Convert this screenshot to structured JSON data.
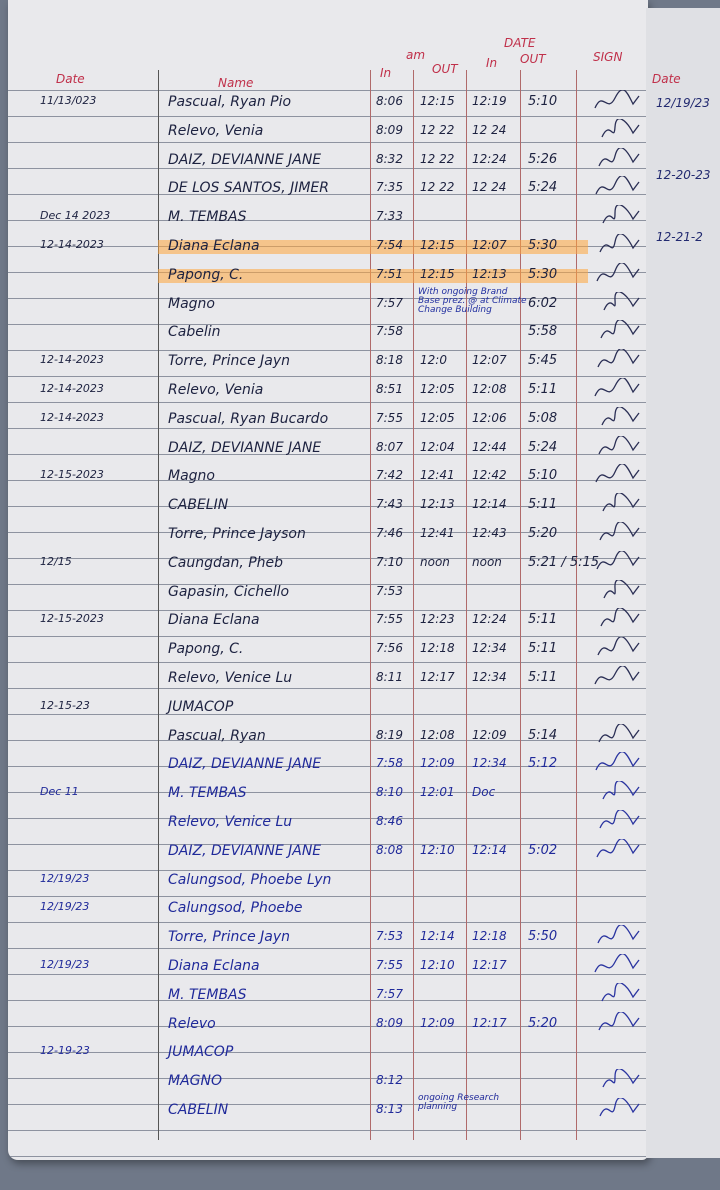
{
  "header": {
    "date": "Date",
    "name": "Name",
    "am": "am",
    "date_col": "DATE",
    "in_am": "In",
    "out_am": "OUT",
    "in_pm": "In",
    "out_pm": "OUT",
    "sign": "SIGN"
  },
  "right_page": {
    "header": "Date",
    "dates": [
      "12/19/23",
      "12-20-23",
      "12-21-2"
    ]
  },
  "highlight_color": "#ffa53c",
  "rows": [
    {
      "date": "11/13/023",
      "name": "Pascual, Ryan Pio",
      "am_in": "8:06",
      "am_out": "12:15",
      "pm_in": "12:19",
      "pm_out": "5:10"
    },
    {
      "date": "",
      "name": "Relevo, Venia",
      "am_in": "8:09",
      "am_out": "12 22",
      "pm_in": "12 24",
      "pm_out": ""
    },
    {
      "date": "",
      "name": "DAIZ, DEVIANNE JANE",
      "am_in": "8:32",
      "am_out": "12 22",
      "pm_in": "12:24",
      "pm_out": "5:26"
    },
    {
      "date": "",
      "name": "DE LOS SANTOS, JIMER",
      "am_in": "7:35",
      "am_out": "12 22",
      "pm_in": "12 24",
      "pm_out": "5:24"
    },
    {
      "date": "Dec 14 2023",
      "name": "M. TEMBAS",
      "am_in": "7:33",
      "am_out": "",
      "pm_in": "",
      "pm_out": ""
    },
    {
      "date": "12-14-2023",
      "name": "Diana Eclana",
      "am_in": "7:54",
      "am_out": "12:15",
      "pm_in": "12:07",
      "pm_out": "5:30",
      "highlight": true
    },
    {
      "date": "",
      "name": "Papong, C.",
      "am_in": "7:51",
      "am_out": "12:15",
      "pm_in": "12:13",
      "pm_out": "5:30",
      "highlight": true
    },
    {
      "date": "",
      "name": "Magno",
      "am_in": "7:57",
      "note": "With ongoing Brand Base prez. @ at Climate Change Building",
      "pm_out": "6:02"
    },
    {
      "date": "",
      "name": "Cabelin",
      "am_in": "7:58",
      "am_out": "",
      "pm_in": "",
      "pm_out": "5:58"
    },
    {
      "date": "12-14-2023",
      "name": "Torre, Prince Jayn",
      "am_in": "8:18",
      "am_out": "12:0",
      "pm_in": "12:07",
      "pm_out": "5:45"
    },
    {
      "date": "12-14-2023",
      "name": "Relevo, Venia",
      "am_in": "8:51",
      "am_out": "12:05",
      "pm_in": "12:08",
      "pm_out": "5:11"
    },
    {
      "date": "12-14-2023",
      "name": "Pascual, Ryan Bucardo",
      "am_in": "7:55",
      "am_out": "12:05",
      "pm_in": "12:06",
      "pm_out": "5:08"
    },
    {
      "date": "",
      "name": "DAIZ, DEVIANNE JANE",
      "am_in": "8:07",
      "am_out": "12:04",
      "pm_in": "12:44",
      "pm_out": "5:24"
    },
    {
      "date": "12-15-2023",
      "name": "Magno",
      "am_in": "7:42",
      "am_out": "12:41",
      "pm_in": "12:42",
      "pm_out": "5:10"
    },
    {
      "date": "",
      "name": "CABELIN",
      "am_in": "7:43",
      "am_out": "12:13",
      "pm_in": "12:14",
      "pm_out": "5:11"
    },
    {
      "date": "",
      "name": "Torre, Prince Jayson",
      "am_in": "7:46",
      "am_out": "12:41",
      "pm_in": "12:43",
      "pm_out": "5:20"
    },
    {
      "date": "12/15",
      "name": "Caungdan, Pheb",
      "am_in": "7:10",
      "am_out": "noon",
      "pm_in": "noon",
      "pm_out": "5:21 / 5:15"
    },
    {
      "date": "",
      "name": "Gapasin, Cichello",
      "am_in": "7:53",
      "am_out": "",
      "pm_in": "",
      "pm_out": ""
    },
    {
      "date": "12-15-2023",
      "name": "Diana Eclana",
      "am_in": "7:55",
      "am_out": "12:23",
      "pm_in": "12:24",
      "pm_out": "5:11"
    },
    {
      "date": "",
      "name": "Papong, C.",
      "am_in": "7:56",
      "am_out": "12:18",
      "pm_in": "12:34",
      "pm_out": "5:11"
    },
    {
      "date": "",
      "name": "Relevo, Venice Lu",
      "am_in": "8:11",
      "am_out": "12:17",
      "pm_in": "12:34",
      "pm_out": "5:11"
    },
    {
      "date": "12-15-23",
      "name": "JUMACOP",
      "am_in": "",
      "am_out": "",
      "pm_in": "",
      "pm_out": ""
    },
    {
      "date": "",
      "name": "Pascual, Ryan",
      "am_in": "8:19",
      "am_out": "12:08",
      "pm_in": "12:09",
      "pm_out": "5:14"
    },
    {
      "date": "",
      "name": "DAIZ, DEVIANNE JANE",
      "am_in": "7:58",
      "am_out": "12:09",
      "pm_in": "12:34",
      "pm_out": "5:12",
      "blue": true
    },
    {
      "date": "Dec 11",
      "name": "M. TEMBAS",
      "am_in": "8:10",
      "am_out": "12:01",
      "pm_in": "Doc",
      "pm_out": "",
      "blue": true
    },
    {
      "date": "",
      "name": "Relevo, Venice Lu",
      "am_in": "8:46",
      "am_out": "",
      "pm_in": "",
      "pm_out": "",
      "blue": true
    },
    {
      "date": "",
      "name": "DAIZ, DEVIANNE JANE",
      "am_in": "8:08",
      "am_out": "12:10",
      "pm_in": "12:14",
      "pm_out": "5:02",
      "blue": true
    },
    {
      "date": "12/19/23",
      "name": "Calungsod, Phoebe Lyn",
      "am_in": "",
      "am_out": "",
      "pm_in": "",
      "pm_out": "",
      "blue": true
    },
    {
      "date": "12/19/23",
      "name": "Calungsod, Phoebe",
      "am_in": "",
      "am_out": "",
      "pm_in": "",
      "pm_out": "",
      "blue": true
    },
    {
      "date": "",
      "name": "Torre, Prince Jayn",
      "am_in": "7:53",
      "am_out": "12:14",
      "pm_in": "12:18",
      "pm_out": "5:50",
      "blue": true
    },
    {
      "date": "12/19/23",
      "name": "Diana Eclana",
      "am_in": "7:55",
      "am_out": "12:10",
      "pm_in": "12:17",
      "pm_out": "",
      "blue": true
    },
    {
      "date": "",
      "name": "M. TEMBAS",
      "am_in": "7:57",
      "am_out": "",
      "pm_in": "",
      "pm_out": "",
      "blue": true
    },
    {
      "date": "",
      "name": "Relevo",
      "am_in": "8:09",
      "am_out": "12:09",
      "pm_in": "12:17",
      "pm_out": "5:20",
      "blue": true
    },
    {
      "date": "12-19-23",
      "name": "JUMACOP",
      "am_in": "",
      "am_out": "",
      "pm_in": "",
      "pm_out": "",
      "blue": true
    },
    {
      "date": "",
      "name": "MAGNO",
      "am_in": "8:12",
      "am_out": "",
      "pm_in": "",
      "pm_out": "",
      "blue": true
    },
    {
      "date": "",
      "name": "CABELIN",
      "am_in": "8:13",
      "note": "ongoing Research planning",
      "pm_out": "",
      "blue": true
    }
  ]
}
